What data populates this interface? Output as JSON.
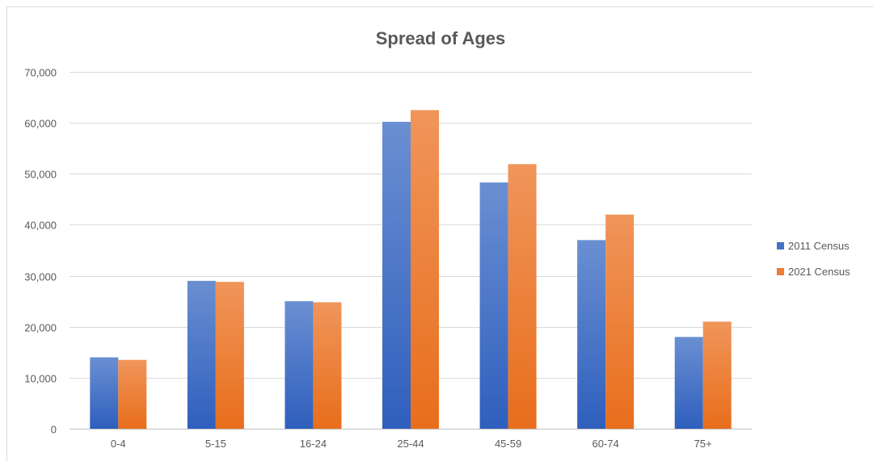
{
  "chart_data": {
    "type": "bar",
    "title": "Spread of Ages",
    "xlabel": "",
    "ylabel": "",
    "categories": [
      "0-4",
      "5-15",
      "16-24",
      "25-44",
      "45-59",
      "60-74",
      "75+"
    ],
    "series": [
      {
        "name": "2011 Census",
        "color": "#4472c4",
        "values": [
          14000,
          29000,
          25000,
          60200,
          48300,
          37000,
          18000
        ]
      },
      {
        "name": "2021 Census",
        "color": "#ed7d31",
        "values": [
          13500,
          28800,
          24800,
          62500,
          51900,
          42000,
          21000
        ]
      }
    ],
    "ylim": [
      0,
      70000
    ],
    "yticks": [
      0,
      10000,
      20000,
      30000,
      40000,
      50000,
      60000,
      70000
    ],
    "ytick_labels": [
      "0",
      "10,000",
      "20,000",
      "30,000",
      "40,000",
      "50,000",
      "60,000",
      "70,000"
    ],
    "grid": true,
    "legend_position": "right"
  }
}
